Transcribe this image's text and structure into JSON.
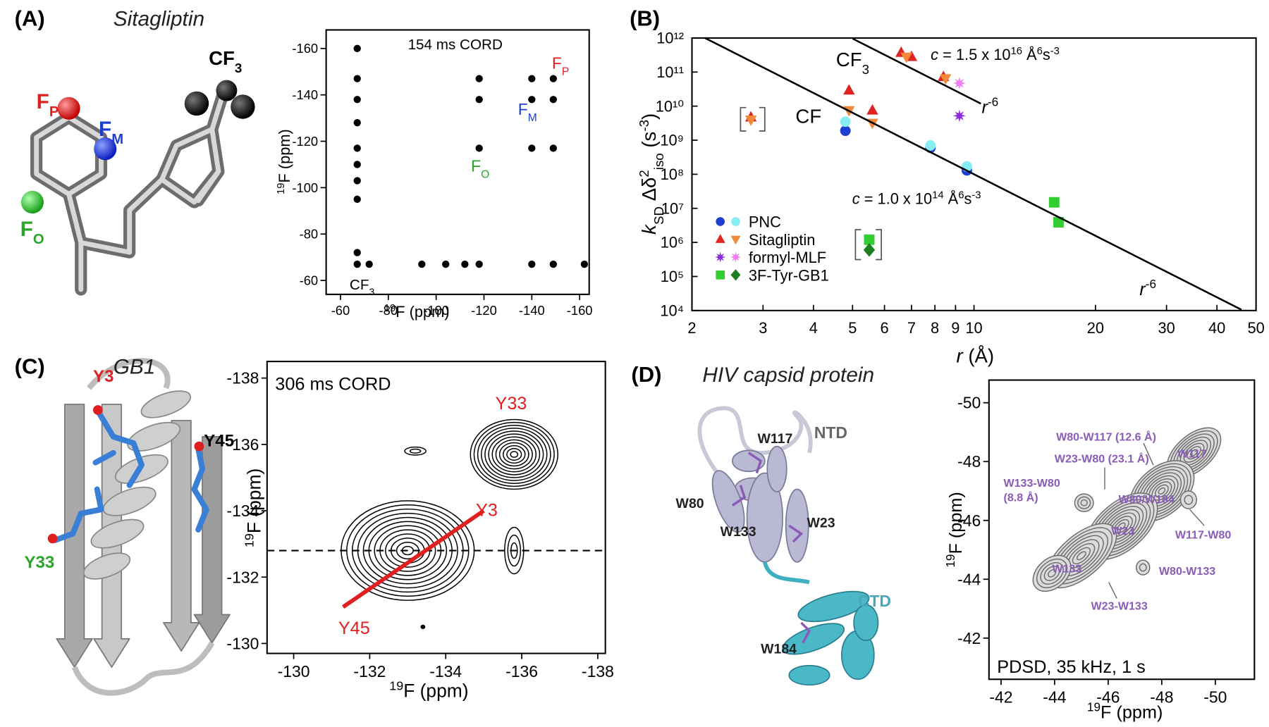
{
  "panels": [
    {
      "label": "(A)",
      "title": "Sitagliptin"
    },
    {
      "label": "(B)"
    },
    {
      "label": "(C)",
      "title": "GB1"
    },
    {
      "label": "(D)",
      "title": "HIV capsid protein"
    }
  ],
  "structures": [
    {
      "labels": [
        {
          "text": [
            {
              "text": "F"
            },
            {
              "text": "P",
              "pos": "sub"
            }
          ],
          "color": "#e02020",
          "weight": "bold"
        },
        {
          "text": [
            {
              "text": "F"
            },
            {
              "text": "M",
              "pos": "sub"
            }
          ],
          "color": "#1d3fd0",
          "weight": "bold"
        },
        {
          "text": [
            {
              "text": "F"
            },
            {
              "text": "O",
              "pos": "sub"
            }
          ],
          "color": "#2aa52a",
          "weight": "bold"
        },
        {
          "text": [
            {
              "text": "CF"
            },
            {
              "text": "3",
              "pos": "sub"
            }
          ],
          "color": "#000000",
          "weight": "bold"
        }
      ]
    },
    {
      "labels": [
        {
          "text": "Y3",
          "color": "#e02020",
          "weight": "bold"
        },
        {
          "text": "Y45",
          "color": "#000000",
          "weight": "bold"
        },
        {
          "text": "Y33",
          "color": "#2aa52a",
          "weight": "bold"
        }
      ]
    },
    {
      "labels": [
        {
          "text": "W117",
          "color": "#222222",
          "weight": "bold"
        },
        {
          "text": "NTD",
          "color": "#666666",
          "weight": "bold"
        },
        {
          "text": "W80",
          "color": "#222222",
          "weight": "bold"
        },
        {
          "text": "W133",
          "color": "#222222",
          "weight": "bold"
        },
        {
          "text": "W23",
          "color": "#222222",
          "weight": "bold"
        },
        {
          "text": "CTD",
          "color": "#4aa8b8",
          "weight": "bold"
        },
        {
          "text": "W184",
          "color": "#222222",
          "weight": "bold"
        }
      ]
    }
  ],
  "chart_data": [
    {
      "type": "scatter",
      "marker": "circle",
      "marker_size": 4.5,
      "x_label": [
        {
          "text": "19",
          "pos": "sup"
        },
        {
          "text": "F (ppm)"
        }
      ],
      "y_label": [
        {
          "text": "19",
          "pos": "sup"
        },
        {
          "text": "F (ppm)"
        }
      ],
      "xlim": [
        -54,
        -164
      ],
      "ylim": [
        -54,
        -168
      ],
      "xticks": [
        -60,
        -80,
        -100,
        -120,
        -140,
        -160
      ],
      "yticks": [
        -60,
        -80,
        -100,
        -120,
        -140,
        -160
      ],
      "series": [
        {
          "color": "#000000",
          "x": [
            -67,
            -67,
            -67,
            -67,
            -67,
            -67,
            -67,
            -67,
            -67,
            -67,
            -72,
            -94,
            -104,
            -112,
            -118,
            -140,
            -149,
            -162,
            -118,
            -118,
            -118,
            -140,
            -140,
            -140,
            -149,
            -149,
            -149
          ],
          "values": [
            -160,
            -147,
            -138,
            -128,
            -117,
            -110,
            -103,
            -95,
            -72,
            -67,
            -67,
            -67,
            -67,
            -67,
            -67,
            -67,
            -67,
            -67,
            -147,
            -138,
            -117,
            -147,
            -138,
            -117,
            -147,
            -138,
            -117
          ]
        }
      ],
      "annotations": [
        {
          "text": "154 ms CORD",
          "color": "#000000"
        },
        {
          "text": [
            {
              "text": "CF"
            },
            {
              "text": "3",
              "pos": "sub"
            }
          ],
          "color": "#000000"
        },
        {
          "text": [
            {
              "text": "F"
            },
            {
              "text": "P",
              "pos": "sub"
            }
          ],
          "color": "#e02020"
        },
        {
          "text": [
            {
              "text": "F"
            },
            {
              "text": "M",
              "pos": "sub"
            }
          ],
          "color": "#1d3fd0"
        },
        {
          "text": [
            {
              "text": "F"
            },
            {
              "text": "O",
              "pos": "sub"
            }
          ],
          "color": "#2aa52a"
        }
      ]
    },
    {
      "type": "scatter",
      "xlog": true,
      "ylog": true,
      "legend": "lower left",
      "x_label": [
        {
          "text": "r",
          "style": "italic"
        },
        {
          "text": " (Å)"
        }
      ],
      "y_label": [
        {
          "text": "k",
          "style": "italic"
        },
        {
          "text": "SD",
          "pos": "sub"
        },
        {
          "text": " Δδ"
        },
        {
          "text": "2",
          "pos": "sup"
        },
        {
          "text": "iso",
          "pos": "sub"
        },
        {
          "text": " (s"
        },
        {
          "text": "-3",
          "pos": "sup"
        },
        {
          "text": ")"
        }
      ],
      "xlim": [
        2,
        50
      ],
      "ylim": [
        10000,
        1000000000000.0
      ],
      "xticks": [
        2,
        3,
        4,
        5,
        6,
        7,
        8,
        9,
        10,
        20,
        30,
        40,
        50
      ],
      "yticks": [
        {
          "value": 10000,
          "label": "10⁴"
        },
        {
          "value": 100000,
          "label": "10⁵"
        },
        {
          "value": 1000000,
          "label": "10⁶"
        },
        {
          "value": 10000000,
          "label": "10⁷"
        },
        {
          "value": 100000000,
          "label": "10⁸"
        },
        {
          "value": 1000000000,
          "label": "10⁹"
        },
        {
          "value": 10000000000,
          "label": "10¹⁰"
        },
        {
          "value": 100000000000,
          "label": "10¹¹"
        },
        {
          "value": 1000000000000,
          "label": "10¹²"
        }
      ],
      "series": [
        {
          "name": "PNC",
          "marker": "circle",
          "sets": [
            {
              "color": "#1c3fd1",
              "x": [
                4.8,
                7.8,
                9.6
              ],
              "values": [
                1900000000,
                600000000,
                130000000
              ]
            },
            {
              "color": "#86eef2",
              "x": [
                4.8,
                7.8,
                9.6
              ],
              "values": [
                3500000000,
                700000000,
                170000000
              ]
            }
          ]
        },
        {
          "name": "Sitagliptin",
          "marker": "triangle",
          "sets": [
            {
              "color": "#e02424",
              "x": [
                2.8,
                4.9,
                5.6,
                6.6,
                7.0,
                8.4
              ],
              "values": [
                4700000000,
                29000000000,
                7500000000,
                370000000000,
                280000000000,
                72000000000
              ]
            },
            {
              "color": "#f08a3a",
              "marker": "triangle-down",
              "x": [
                2.8,
                4.9,
                5.6,
                6.8,
                8.5
              ],
              "values": [
                4000000000,
                7500000000,
                3200000000,
                280000000000,
                65000000000
              ]
            }
          ]
        },
        {
          "name": "formyl-MLF",
          "marker": "star",
          "sets": [
            {
              "color": "#8a2be2",
              "x": [
                9.2
              ],
              "values": [
                5200000000
              ]
            },
            {
              "color": "#f07df0",
              "x": [
                9.2
              ],
              "values": [
                47000000000
              ]
            }
          ]
        },
        {
          "name": "3F-Tyr-GB1",
          "marker": "square",
          "sets": [
            {
              "color": "#33cc33",
              "x": [
                5.5,
                15.8,
                16.2
              ],
              "values": [
                1200000,
                15000000,
                3900000
              ]
            },
            {
              "color": "#1e7d1e",
              "marker": "diamond",
              "x": [
                5.5
              ],
              "values": [
                600000
              ]
            }
          ]
        }
      ],
      "fits": [
        {
          "c": 1.5e+16,
          "power": -6,
          "xrange": [
            5.0,
            10.4
          ],
          "label": [
            {
              "text": "c",
              "style": "italic"
            },
            {
              "text": " = 1.5 x 10"
            },
            {
              "text": "16",
              "pos": "sup"
            },
            {
              "text": " Å"
            },
            {
              "text": "6",
              "pos": "sup"
            },
            {
              "text": "s"
            },
            {
              "text": "-3",
              "pos": "sup"
            }
          ],
          "power_label": [
            {
              "text": "r",
              "style": "italic"
            },
            {
              "text": "-6",
              "pos": "sup"
            }
          ]
        },
        {
          "c": 100000000000000.0,
          "power": -6,
          "xrange": [
            2.15,
            46
          ],
          "label": [
            {
              "text": "c",
              "style": "italic"
            },
            {
              "text": " = 1.0 x 10"
            },
            {
              "text": "14",
              "pos": "sup"
            },
            {
              "text": " Å"
            },
            {
              "text": "6",
              "pos": "sup"
            },
            {
              "text": "s"
            },
            {
              "text": "-3",
              "pos": "sup"
            }
          ],
          "power_label": [
            {
              "text": "r",
              "style": "italic"
            },
            {
              "text": "-6",
              "pos": "sup"
            }
          ]
        }
      ],
      "annotations": [
        {
          "text": [
            {
              "text": "CF"
            },
            {
              "text": "3",
              "pos": "sub"
            }
          ],
          "color": "#000000"
        },
        {
          "text": "CF",
          "color": "#000000"
        }
      ]
    },
    {
      "type": "contour",
      "stroke": "#000000",
      "fill": "none",
      "x_label": [
        {
          "text": "19",
          "pos": "sup"
        },
        {
          "text": "F (ppm)"
        }
      ],
      "y_label": [
        {
          "text": "19",
          "pos": "sup"
        },
        {
          "text": "F (ppm)"
        }
      ],
      "xlim": [
        -129.3,
        -138.2
      ],
      "ylim": [
        -129.7,
        -138.5
      ],
      "xticks": [
        -130,
        -132,
        -134,
        -136,
        -138
      ],
      "yticks": [
        -130,
        -132,
        -134,
        -136,
        -138
      ],
      "peaks": [
        {
          "x": -133.0,
          "y": -132.8,
          "wx": 1.75,
          "wy": 1.5,
          "levels": 12
        },
        {
          "x": -135.8,
          "y": -135.7,
          "wx": 1.15,
          "wy": 1.05,
          "levels": 12
        },
        {
          "x": -133.2,
          "y": -135.8,
          "wx": 0.28,
          "wy": 0.12,
          "levels": 2
        },
        {
          "x": -135.8,
          "y": -132.8,
          "wx": 0.25,
          "wy": 0.7,
          "levels": 3
        },
        {
          "x": -133.4,
          "y": -130.5,
          "wx": 0.05,
          "wy": 0.05,
          "levels": 1
        }
      ],
      "hline": -132.8,
      "segment": {
        "color": "#e02020",
        "x": [
          -131.3,
          -135.0
        ],
        "values": [
          -131.1,
          -134.0
        ]
      },
      "annotations": [
        {
          "text": "306 ms CORD",
          "color": "#000000"
        },
        {
          "text": "Y33",
          "color": "#e02020"
        },
        {
          "text": "Y3",
          "color": "#e02020"
        },
        {
          "text": "Y45",
          "color": "#e02020"
        }
      ]
    },
    {
      "type": "contour",
      "stroke": "#6e6e6e",
      "fill": "#dcdcdc",
      "x_label": [
        {
          "text": "19",
          "pos": "sup"
        },
        {
          "text": "F (ppm)"
        }
      ],
      "y_label": [
        {
          "text": "19",
          "pos": "sup"
        },
        {
          "text": "F (ppm)"
        }
      ],
      "xlim": [
        -41.55,
        -51.46
      ],
      "ylim": [
        -40.6,
        -50.77
      ],
      "xticks": [
        -42,
        -44,
        -46,
        -48,
        -50
      ],
      "yticks": [
        -42,
        -44,
        -46,
        -48,
        -50
      ],
      "peaks": [
        {
          "x": -49.2,
          "y": -48.3,
          "wx": 1.2,
          "wy": 0.6,
          "levels": 8,
          "angle": -41
        },
        {
          "x": -48.0,
          "y": -47.0,
          "wx": 1.4,
          "wy": 0.8,
          "levels": 10,
          "angle": -41
        },
        {
          "x": -46.5,
          "y": -45.8,
          "wx": 1.6,
          "wy": 0.8,
          "levels": 10,
          "angle": -41
        },
        {
          "x": -45.0,
          "y": -44.8,
          "wx": 1.6,
          "wy": 0.7,
          "levels": 8,
          "angle": -41
        },
        {
          "x": -43.9,
          "y": -44.2,
          "wx": 0.8,
          "wy": 0.5,
          "levels": 5,
          "angle": -41
        },
        {
          "x": -45.1,
          "y": -46.6,
          "wx": 0.35,
          "wy": 0.3,
          "levels": 3
        },
        {
          "x": -49.0,
          "y": -46.7,
          "wx": 0.3,
          "wy": 0.3,
          "levels": 2
        },
        {
          "x": -47.3,
          "y": -44.4,
          "wx": 0.25,
          "wy": 0.25,
          "levels": 2
        }
      ],
      "annotations": [
        {
          "text": "W80-W117 (12.6 Å)",
          "color": "#8a5cb8"
        },
        {
          "text": "W23-W80 (23.1 Å)",
          "color": "#8a5cb8"
        },
        {
          "text": "W133-W80",
          "color": "#8a5cb8"
        },
        {
          "text": "(8.8 Å)",
          "color": "#8a5cb8"
        },
        {
          "text": "W117",
          "color": "#8a5cb8"
        },
        {
          "text": "W80/W184",
          "color": "#8a5cb8"
        },
        {
          "text": "W23",
          "color": "#8a5cb8"
        },
        {
          "text": "W117-W80",
          "color": "#8a5cb8"
        },
        {
          "text": "W133",
          "color": "#8a5cb8"
        },
        {
          "text": "W80-W133",
          "color": "#8a5cb8"
        },
        {
          "text": "W23-W133",
          "color": "#8a5cb8"
        },
        {
          "text": "PDSD, 35 kHz, 1 s",
          "color": "#000000"
        }
      ]
    }
  ]
}
